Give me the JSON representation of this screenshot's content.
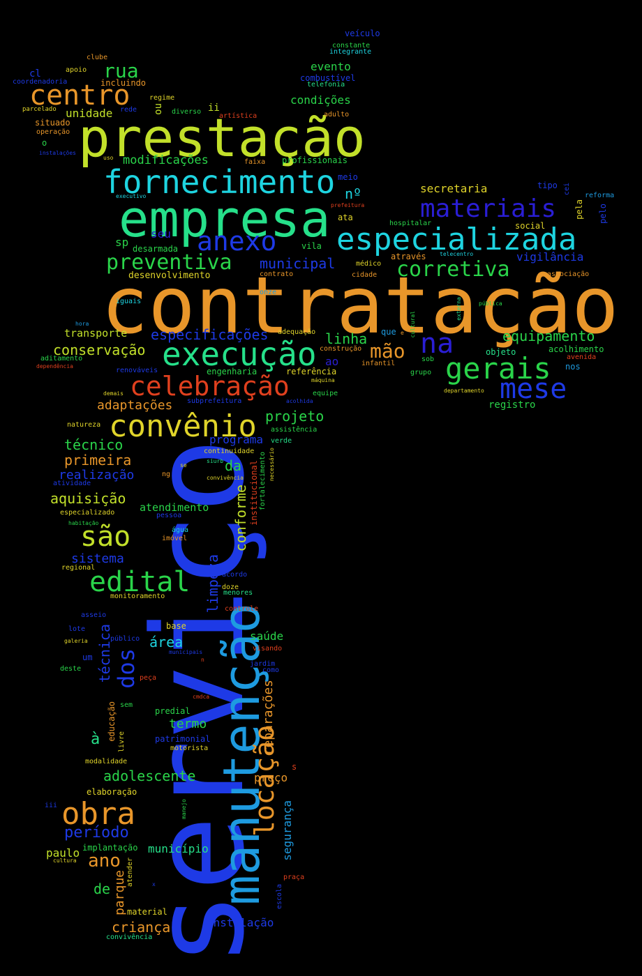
{
  "palette": {
    "orange": "#e8962a",
    "lime": "#c2e02a",
    "green": "#2ad44a",
    "teal": "#26e08a",
    "cyan": "#1ed4e0",
    "sky": "#1e9be0",
    "blue": "#1e3ae6",
    "indigo": "#2a1ed4",
    "red": "#e0401e",
    "yellow": "#e0d42a"
  },
  "words": [
    "contratação",
    "serviço",
    "manutenção",
    "prestação",
    "empresa",
    "especializada",
    "fornecimento",
    "centro",
    "materiais",
    "execução",
    "celebração",
    "convênio",
    "gerais",
    "mese",
    "na",
    "anexo",
    "corretiva",
    "preventiva",
    "edital",
    "são",
    "obra",
    "locação",
    "rua",
    "condições",
    "evento",
    "mão",
    "equipamento",
    "municipal",
    "especificações",
    "linha",
    "projeto",
    "conservação",
    "técnico",
    "primeira",
    "aquisição",
    "realização",
    "sistema",
    "conforme",
    "limpeza",
    "dos",
    "técnica",
    "à",
    "ano",
    "período",
    "de",
    "parque",
    "criança",
    "paulo",
    "adolescente",
    "preço",
    "reparações",
    "segurança",
    "instalação",
    "área",
    "saúde",
    "termo",
    "município",
    "modificações",
    "unidade",
    "secretaria",
    "vigilância",
    "transporte",
    "desenvolvimento",
    "adaptações",
    "programa",
    "atendimento",
    "da",
    "ao",
    "nº",
    "sp",
    "seu",
    "vila",
    "veículo",
    "constante",
    "integrante",
    "clube",
    "apoio",
    "cl",
    "coordenadoria",
    "incluindo",
    "combustível",
    "telefonia",
    "regime",
    "rede",
    "diverso",
    "artística",
    "adulto",
    "parcelado",
    "situado",
    "operação",
    "o",
    "instalações",
    "uso",
    "faixa",
    "profissionais",
    "meio",
    "tipo",
    "cei",
    "reforma",
    "pela",
    "pelo",
    "executivo",
    "prefeitura",
    "ata",
    "hospitalar",
    "social",
    "desarmada",
    "médico",
    "através",
    "associação",
    "contrato",
    "cidade",
    "onze",
    "iguais",
    "pública",
    "externa",
    "hora",
    "telecentro",
    "adequação",
    "que",
    "cultural",
    "e",
    "acolhimento",
    "avenida",
    "aditamento",
    "construção",
    "objeto",
    "dependência",
    "infantil",
    "sob",
    "nos",
    "renováveis",
    "engenharia",
    "referência",
    "grupo",
    "máquina",
    "demais",
    "equipe",
    "departamento",
    "subprefeitura",
    "acolhida",
    "registro",
    "natureza",
    "assistência",
    "verde",
    "continuidade",
    "siurb",
    "se",
    "ng",
    "convivência",
    "necessário",
    "fortalecimento",
    "institucional",
    "atividade",
    "especializado",
    "pessoa",
    "habitação",
    "água",
    "imóvel",
    "regional",
    "acordo",
    "doze",
    "menores",
    "monitoramento",
    "controle",
    "asseio",
    "base",
    "lote",
    "público",
    "galeria",
    "municipais",
    "visando",
    "um",
    "jardim",
    "deste",
    "n",
    "como",
    "peça",
    "cmdca",
    "educação",
    "sem",
    "predial",
    "patrimonial",
    "livre",
    "motorista",
    "modalidade",
    "s",
    "elaboração",
    "iii",
    "manejo",
    "implantação",
    "cultura",
    "atender",
    "x",
    "escola",
    "praça",
    "material",
    "convivência",
    "ii",
    "ou"
  ]
}
